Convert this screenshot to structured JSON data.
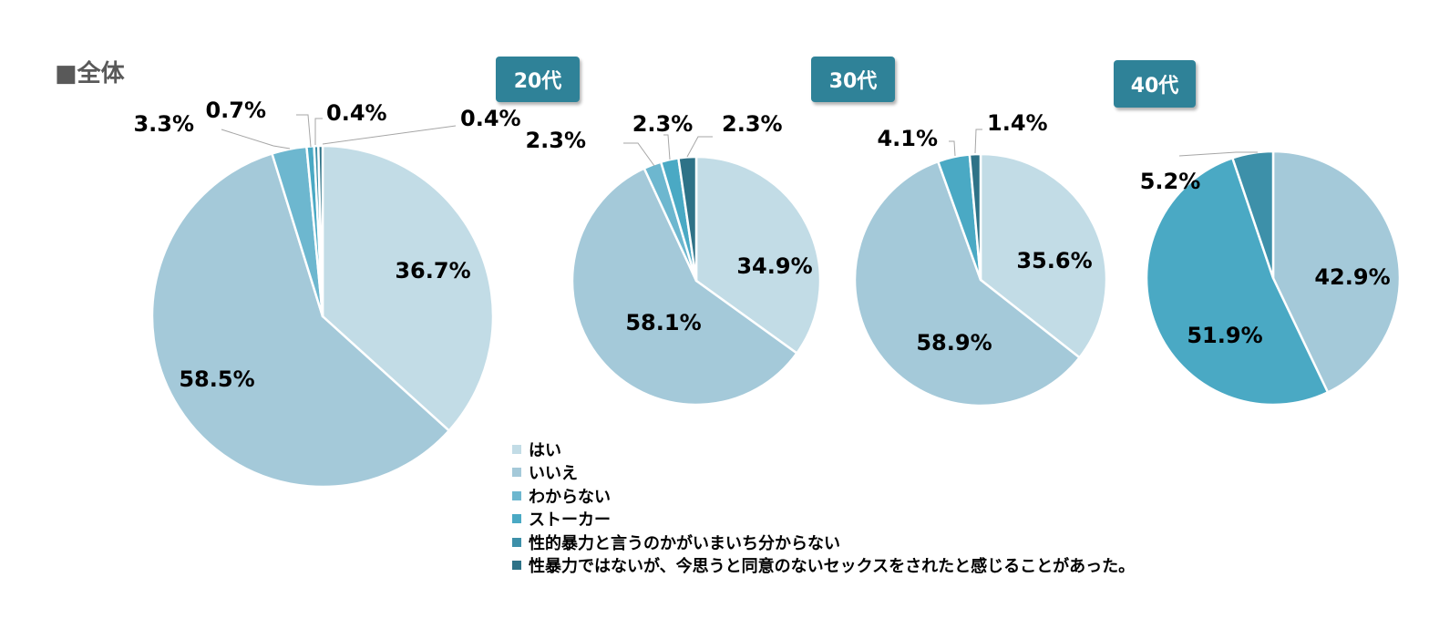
{
  "title": "■全体",
  "legend": [
    {
      "label": "はい",
      "color": "#c2dce6"
    },
    {
      "label": "いいえ",
      "color": "#a4c9d9"
    },
    {
      "label": "わからない",
      "color": "#6db7cf"
    },
    {
      "label": "ストーカー",
      "color": "#4aa9c4"
    },
    {
      "label": "性的暴力と言うのかがいまいち分からない",
      "color": "#3d90a9"
    },
    {
      "label": "性暴力ではないが、今思うと同意のないセックスをされたと感じることがあった。",
      "color": "#2e7287"
    }
  ],
  "chart_data": [
    {
      "type": "pie",
      "title": "",
      "slices": [
        {
          "label": "はい",
          "value": 36.7,
          "text": "36.7%"
        },
        {
          "label": "いいえ",
          "value": 58.5,
          "text": "58.5%"
        },
        {
          "label": "わからない",
          "value": 3.3,
          "text": "3.3%"
        },
        {
          "label": "ストーカー",
          "value": 0.7,
          "text": "0.7%"
        },
        {
          "label": "性的暴力と言うのかがいまいち分からない",
          "value": 0.4,
          "text": "0.4%"
        },
        {
          "label": "性暴力ではないが、今思うと同意のないセックスをされたと感じることがあった。",
          "value": 0.4,
          "text": "0.4%"
        }
      ]
    },
    {
      "type": "pie",
      "title": "20代",
      "slices": [
        {
          "label": "はい",
          "value": 34.9,
          "text": "34.9%"
        },
        {
          "label": "いいえ",
          "value": 58.1,
          "text": "58.1%"
        },
        {
          "label": "わからない",
          "value": 2.3,
          "text": "2.3%"
        },
        {
          "label": "ストーカー",
          "value": 2.3,
          "text": "2.3%"
        },
        {
          "label": "性暴力ではないが、今思うと同意のないセックスをされたと感じることがあった。",
          "value": 2.3,
          "text": "2.3%"
        }
      ]
    },
    {
      "type": "pie",
      "title": "30代",
      "slices": [
        {
          "label": "はい",
          "value": 35.6,
          "text": "35.6%"
        },
        {
          "label": "いいえ",
          "value": 58.9,
          "text": "58.9%"
        },
        {
          "label": "ストーカー",
          "value": 4.1,
          "text": "4.1%"
        },
        {
          "label": "性暴力ではないが、今思うと同意のないセックスをされたと感じることがあった。",
          "value": 1.4,
          "text": "1.4%"
        }
      ]
    },
    {
      "type": "pie",
      "title": "40代",
      "slices": [
        {
          "label": "いいえ",
          "value": 42.9,
          "text": "42.9%"
        },
        {
          "label": "ストーカー",
          "value": 51.9,
          "text": "51.9%"
        },
        {
          "label": "性的暴力と言うのかがいまいち分からない",
          "value": 5.2,
          "text": "5.2%"
        }
      ]
    }
  ]
}
